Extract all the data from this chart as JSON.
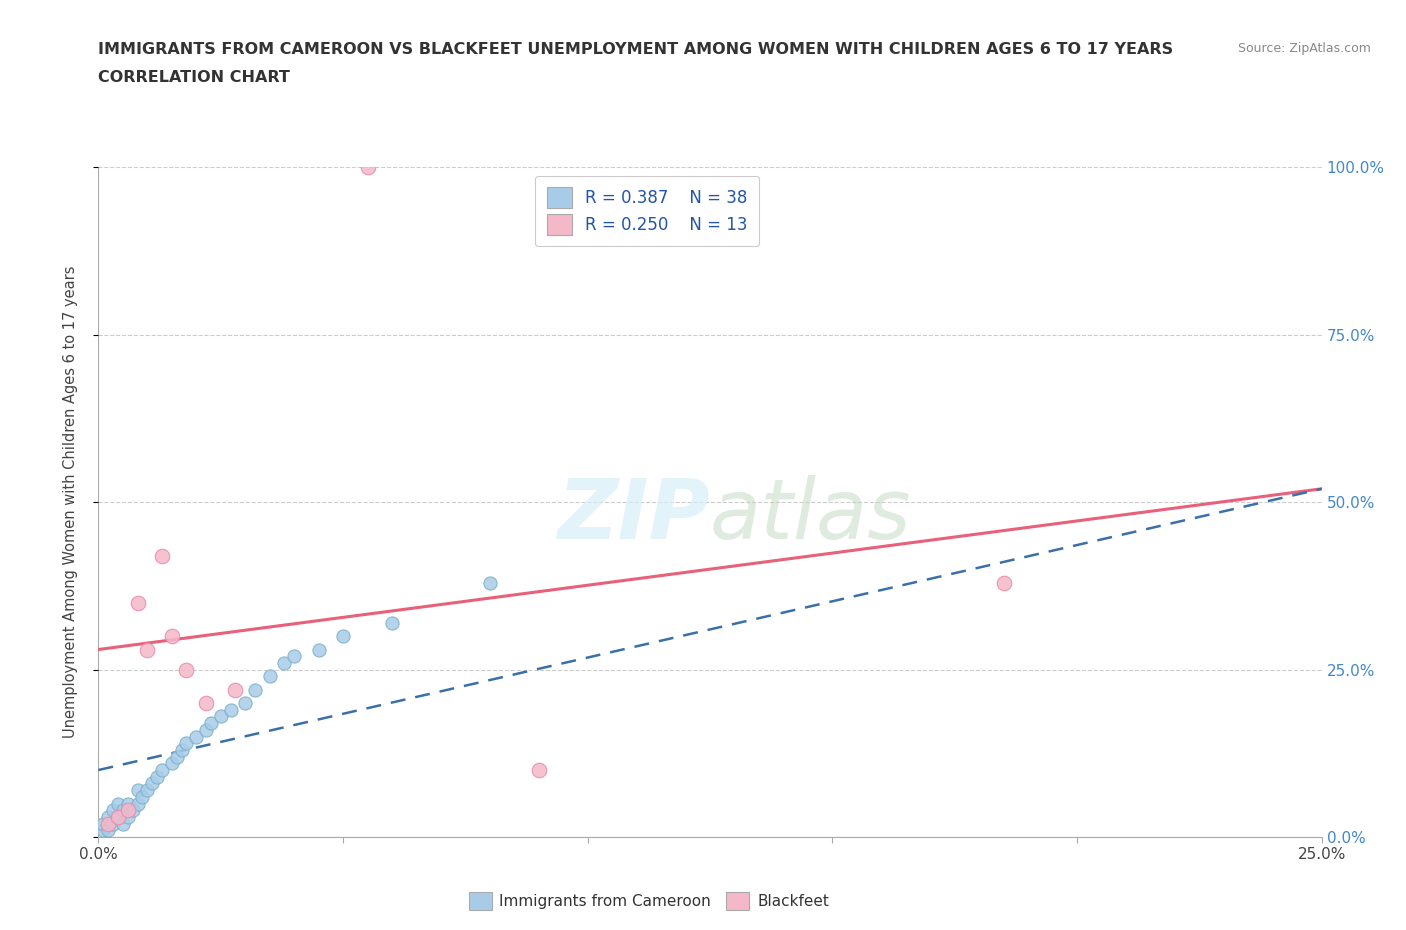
{
  "title_line1": "IMMIGRANTS FROM CAMEROON VS BLACKFEET UNEMPLOYMENT AMONG WOMEN WITH CHILDREN AGES 6 TO 17 YEARS",
  "title_line2": "CORRELATION CHART",
  "source": "Source: ZipAtlas.com",
  "ylabel": "Unemployment Among Women with Children Ages 6 to 17 years",
  "xlim": [
    0.0,
    0.25
  ],
  "ylim": [
    0.0,
    1.0
  ],
  "xticks": [
    0.0,
    0.05,
    0.1,
    0.15,
    0.2,
    0.25
  ],
  "yticks": [
    0.0,
    0.25,
    0.5,
    0.75,
    1.0
  ],
  "ytick_labels": [
    "0.0%",
    "25.0%",
    "50.0%",
    "75.0%",
    "100.0%"
  ],
  "xtick_labels": [
    "0.0%",
    "",
    "",
    "",
    "",
    "25.0%"
  ],
  "watermark": "ZIPatlas",
  "blue_color": "#a8cce8",
  "pink_color": "#f4b8c8",
  "blue_edge_color": "#7aafc8",
  "pink_edge_color": "#e888a8",
  "blue_line_color": "#3a6fa8",
  "pink_line_color": "#e8607a",
  "blue_scatter": [
    [
      0.001,
      0.01
    ],
    [
      0.001,
      0.02
    ],
    [
      0.002,
      0.01
    ],
    [
      0.002,
      0.03
    ],
    [
      0.003,
      0.02
    ],
    [
      0.003,
      0.04
    ],
    [
      0.004,
      0.03
    ],
    [
      0.004,
      0.05
    ],
    [
      0.005,
      0.02
    ],
    [
      0.005,
      0.04
    ],
    [
      0.006,
      0.03
    ],
    [
      0.006,
      0.05
    ],
    [
      0.007,
      0.04
    ],
    [
      0.008,
      0.05
    ],
    [
      0.008,
      0.07
    ],
    [
      0.009,
      0.06
    ],
    [
      0.01,
      0.07
    ],
    [
      0.011,
      0.08
    ],
    [
      0.012,
      0.09
    ],
    [
      0.013,
      0.1
    ],
    [
      0.015,
      0.11
    ],
    [
      0.016,
      0.12
    ],
    [
      0.017,
      0.13
    ],
    [
      0.018,
      0.14
    ],
    [
      0.02,
      0.15
    ],
    [
      0.022,
      0.16
    ],
    [
      0.023,
      0.17
    ],
    [
      0.025,
      0.18
    ],
    [
      0.027,
      0.19
    ],
    [
      0.03,
      0.2
    ],
    [
      0.032,
      0.22
    ],
    [
      0.035,
      0.24
    ],
    [
      0.038,
      0.26
    ],
    [
      0.04,
      0.27
    ],
    [
      0.045,
      0.28
    ],
    [
      0.05,
      0.3
    ],
    [
      0.06,
      0.32
    ],
    [
      0.08,
      0.38
    ]
  ],
  "pink_scatter": [
    [
      0.002,
      0.02
    ],
    [
      0.004,
      0.03
    ],
    [
      0.006,
      0.04
    ],
    [
      0.008,
      0.35
    ],
    [
      0.01,
      0.28
    ],
    [
      0.013,
      0.42
    ],
    [
      0.015,
      0.3
    ],
    [
      0.018,
      0.25
    ],
    [
      0.022,
      0.2
    ],
    [
      0.028,
      0.22
    ],
    [
      0.055,
      1.0
    ],
    [
      0.09,
      0.1
    ],
    [
      0.185,
      0.38
    ]
  ],
  "blue_trend_x": [
    0.0,
    0.25
  ],
  "blue_trend_y": [
    0.1,
    0.52
  ],
  "pink_trend_x": [
    0.0,
    0.25
  ],
  "pink_trend_y": [
    0.28,
    0.52
  ]
}
